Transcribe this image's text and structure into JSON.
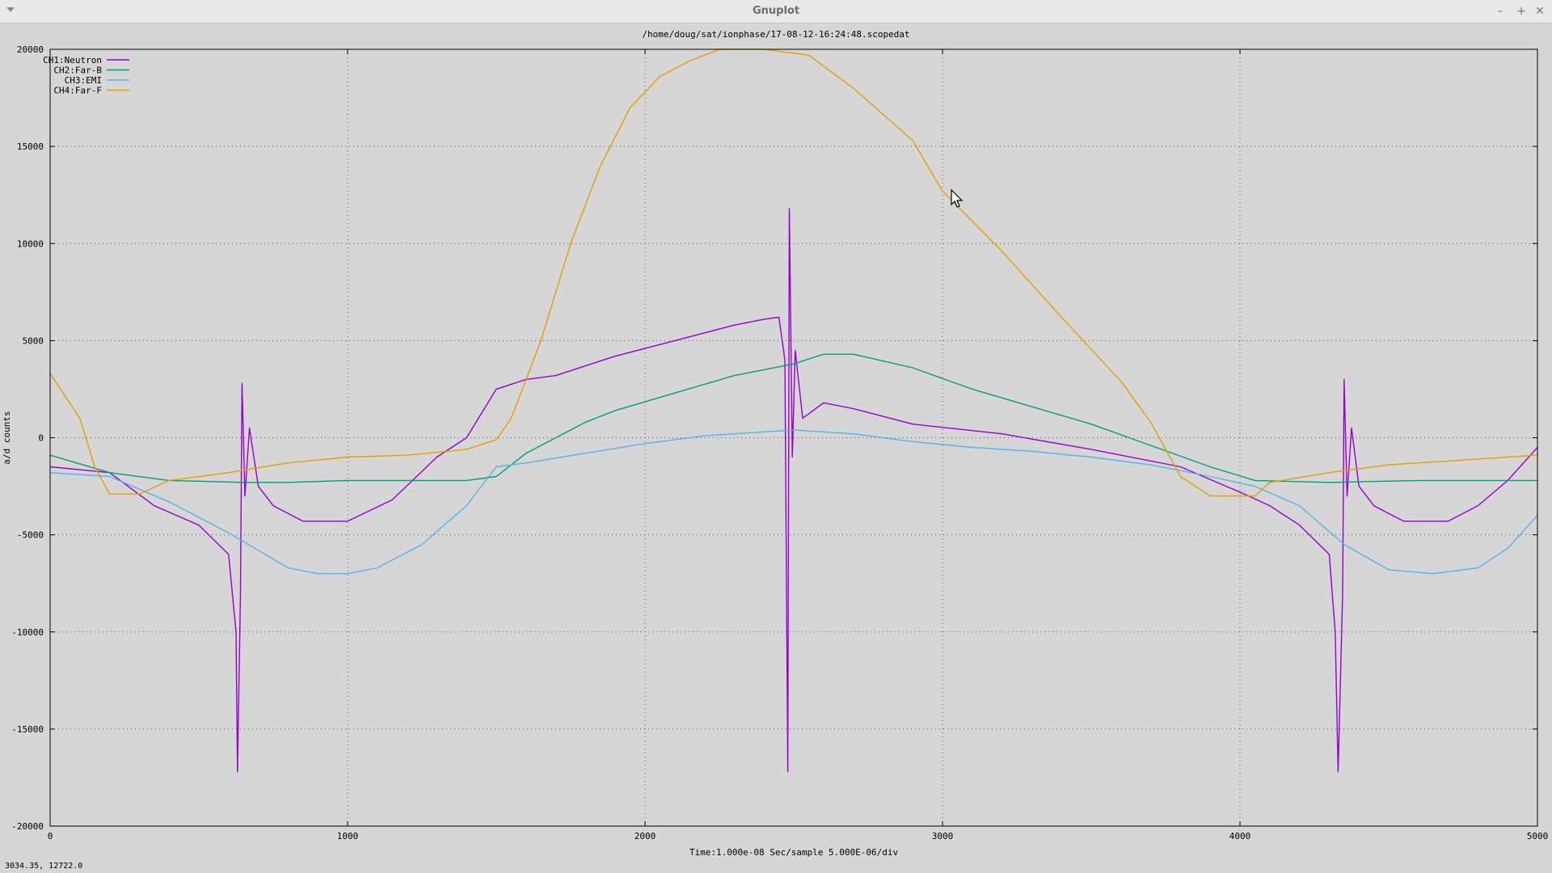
{
  "window": {
    "title": "Gnuplot",
    "buttons": {
      "minimize": "–",
      "maximize": "+",
      "close": "✕"
    }
  },
  "status_bar": {
    "coords": "3034.35,  12722.0"
  },
  "chart_data": {
    "type": "line",
    "title": "/home/doug/sat/ionphase/17-08-12-16:24:48.scopedat",
    "xlabel": "Time:1.000e-08 Sec/sample 5.000E-06/div",
    "ylabel": "a/d counts",
    "xlim": [
      0,
      5000
    ],
    "ylim": [
      -20000,
      20000
    ],
    "xticks": [
      "0",
      "1000",
      "2000",
      "3000",
      "4000",
      "5000"
    ],
    "yticks": [
      "-20000",
      "-15000",
      "-10000",
      "-5000",
      "0",
      "5000",
      "10000",
      "15000",
      "20000"
    ],
    "grid": true,
    "legend_position": "top-left",
    "series": [
      {
        "name": "CH1:Neutron",
        "color": "#9400d3",
        "points": [
          [
            0,
            -1500
          ],
          [
            200,
            -1800
          ],
          [
            350,
            -3500
          ],
          [
            500,
            -4500
          ],
          [
            600,
            -6000
          ],
          [
            625,
            -10000
          ],
          [
            630,
            -17200
          ],
          [
            640,
            -8000
          ],
          [
            645,
            2800
          ],
          [
            655,
            -3000
          ],
          [
            670,
            500
          ],
          [
            700,
            -2500
          ],
          [
            750,
            -3500
          ],
          [
            850,
            -4300
          ],
          [
            1000,
            -4300
          ],
          [
            1150,
            -3200
          ],
          [
            1300,
            -1000
          ],
          [
            1400,
            0
          ],
          [
            1500,
            2500
          ],
          [
            1600,
            3000
          ],
          [
            1700,
            3200
          ],
          [
            1900,
            4200
          ],
          [
            2100,
            5000
          ],
          [
            2300,
            5800
          ],
          [
            2400,
            6100
          ],
          [
            2450,
            6200
          ],
          [
            2470,
            4000
          ],
          [
            2480,
            -17200
          ],
          [
            2485,
            11800
          ],
          [
            2495,
            -1000
          ],
          [
            2505,
            4500
          ],
          [
            2530,
            1000
          ],
          [
            2600,
            1800
          ],
          [
            2700,
            1500
          ],
          [
            2900,
            700
          ],
          [
            3200,
            200
          ],
          [
            3500,
            -600
          ],
          [
            3800,
            -1500
          ],
          [
            4000,
            -2800
          ],
          [
            4100,
            -3500
          ],
          [
            4200,
            -4500
          ],
          [
            4300,
            -6000
          ],
          [
            4320,
            -10000
          ],
          [
            4330,
            -17200
          ],
          [
            4345,
            -8000
          ],
          [
            4350,
            3000
          ],
          [
            4360,
            -3000
          ],
          [
            4375,
            500
          ],
          [
            4400,
            -2500
          ],
          [
            4450,
            -3500
          ],
          [
            4550,
            -4300
          ],
          [
            4700,
            -4300
          ],
          [
            4800,
            -3500
          ],
          [
            4900,
            -2200
          ],
          [
            5000,
            -500
          ]
        ]
      },
      {
        "name": "CH2:Far-B",
        "color": "#009e73",
        "points": [
          [
            0,
            -900
          ],
          [
            200,
            -1800
          ],
          [
            400,
            -2200
          ],
          [
            650,
            -2300
          ],
          [
            800,
            -2300
          ],
          [
            1000,
            -2200
          ],
          [
            1400,
            -2200
          ],
          [
            1500,
            -2000
          ],
          [
            1600,
            -800
          ],
          [
            1700,
            0
          ],
          [
            1800,
            800
          ],
          [
            1900,
            1400
          ],
          [
            2100,
            2300
          ],
          [
            2300,
            3200
          ],
          [
            2500,
            3800
          ],
          [
            2600,
            4300
          ],
          [
            2700,
            4300
          ],
          [
            2900,
            3600
          ],
          [
            3100,
            2500
          ],
          [
            3300,
            1600
          ],
          [
            3500,
            700
          ],
          [
            3700,
            -400
          ],
          [
            3900,
            -1500
          ],
          [
            4050,
            -2200
          ],
          [
            4300,
            -2300
          ],
          [
            4600,
            -2200
          ],
          [
            5000,
            -2200
          ]
        ]
      },
      {
        "name": "CH3:EMI",
        "color": "#56b4e9",
        "points": [
          [
            0,
            -1800
          ],
          [
            200,
            -2000
          ],
          [
            400,
            -3300
          ],
          [
            600,
            -4900
          ],
          [
            800,
            -6700
          ],
          [
            900,
            -7000
          ],
          [
            1000,
            -7000
          ],
          [
            1100,
            -6700
          ],
          [
            1250,
            -5500
          ],
          [
            1400,
            -3500
          ],
          [
            1500,
            -1500
          ],
          [
            1600,
            -1300
          ],
          [
            1800,
            -800
          ],
          [
            2000,
            -300
          ],
          [
            2200,
            100
          ],
          [
            2400,
            300
          ],
          [
            2500,
            400
          ],
          [
            2700,
            200
          ],
          [
            2900,
            -200
          ],
          [
            3100,
            -500
          ],
          [
            3300,
            -700
          ],
          [
            3500,
            -1000
          ],
          [
            3700,
            -1400
          ],
          [
            3900,
            -2000
          ],
          [
            4050,
            -2500
          ],
          [
            4200,
            -3500
          ],
          [
            4350,
            -5500
          ],
          [
            4500,
            -6800
          ],
          [
            4650,
            -7000
          ],
          [
            4800,
            -6700
          ],
          [
            4900,
            -5700
          ],
          [
            5000,
            -4000
          ]
        ]
      },
      {
        "name": "CH4:Far-F",
        "color": "#e69f00",
        "points": [
          [
            0,
            3300
          ],
          [
            100,
            1000
          ],
          [
            150,
            -1500
          ],
          [
            200,
            -2900
          ],
          [
            300,
            -2900
          ],
          [
            400,
            -2200
          ],
          [
            600,
            -1800
          ],
          [
            800,
            -1300
          ],
          [
            1000,
            -1000
          ],
          [
            1200,
            -900
          ],
          [
            1400,
            -600
          ],
          [
            1500,
            -100
          ],
          [
            1550,
            1000
          ],
          [
            1650,
            5000
          ],
          [
            1750,
            10000
          ],
          [
            1850,
            14000
          ],
          [
            1950,
            17000
          ],
          [
            2050,
            18600
          ],
          [
            2150,
            19400
          ],
          [
            2250,
            20000
          ],
          [
            2400,
            20000
          ],
          [
            2550,
            19700
          ],
          [
            2700,
            18000
          ],
          [
            2900,
            15300
          ],
          [
            3000,
            12700
          ],
          [
            3200,
            9600
          ],
          [
            3400,
            6200
          ],
          [
            3600,
            2900
          ],
          [
            3700,
            800
          ],
          [
            3800,
            -2000
          ],
          [
            3900,
            -3000
          ],
          [
            4050,
            -3000
          ],
          [
            4100,
            -2300
          ],
          [
            4300,
            -1800
          ],
          [
            4500,
            -1400
          ],
          [
            4700,
            -1200
          ],
          [
            5000,
            -900
          ]
        ]
      }
    ]
  }
}
